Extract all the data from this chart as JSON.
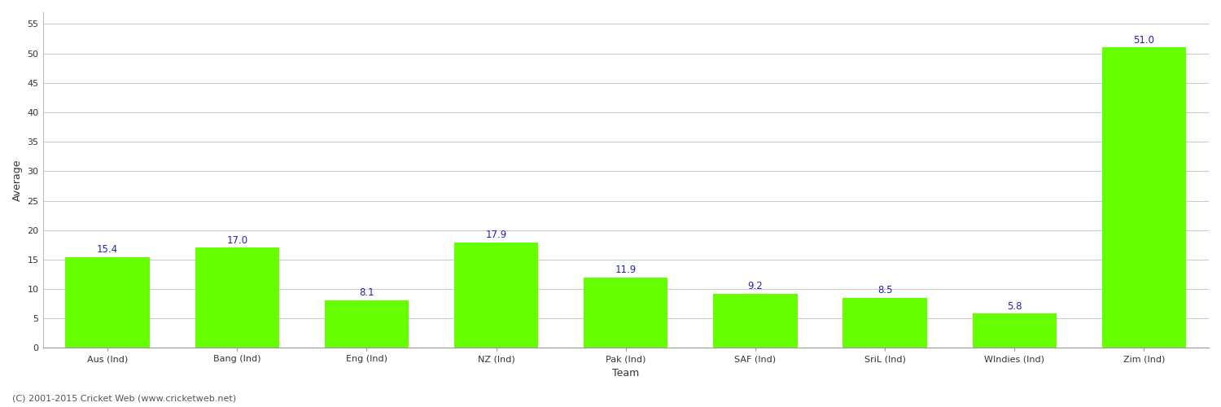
{
  "categories": [
    "Aus (Ind)",
    "Bang (Ind)",
    "Eng (Ind)",
    "NZ (Ind)",
    "Pak (Ind)",
    "SAF (Ind)",
    "SriL (Ind)",
    "WIndies (Ind)",
    "Zim (Ind)"
  ],
  "values": [
    15.4,
    17.0,
    8.1,
    17.9,
    11.9,
    9.2,
    8.5,
    5.8,
    51.0
  ],
  "bar_color": "#66ff00",
  "bar_edge_color": "#66ff00",
  "value_color": "#2222aa",
  "ylabel": "Average",
  "xlabel": "Team",
  "ylim": [
    0,
    57
  ],
  "yticks": [
    0,
    5,
    10,
    15,
    20,
    25,
    30,
    35,
    40,
    45,
    50,
    55
  ],
  "background_color": "#ffffff",
  "grid_color": "#cccccc",
  "footer": "(C) 2001-2015 Cricket Web (www.cricketweb.net)",
  "axis_label_fontsize": 9,
  "tick_fontsize": 8,
  "value_fontsize": 8.5,
  "footer_fontsize": 8
}
